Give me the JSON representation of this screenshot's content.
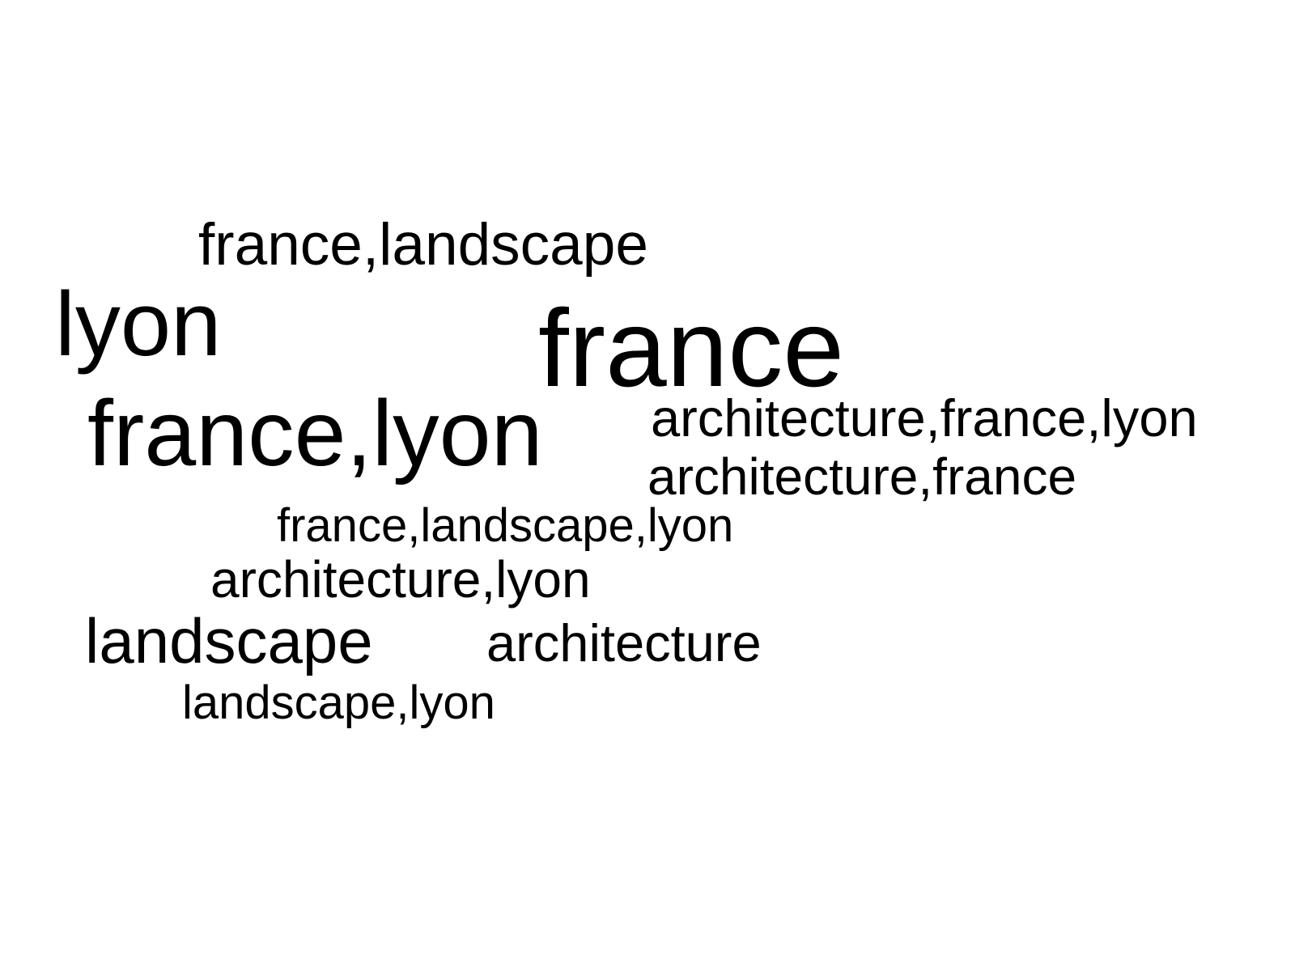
{
  "word_cloud": {
    "text_color": "#000000",
    "background_color": "#ffffff",
    "words": [
      {
        "id": "france-landscape",
        "text": "france,landscape"
      },
      {
        "id": "lyon",
        "text": "lyon"
      },
      {
        "id": "france",
        "text": "france"
      },
      {
        "id": "france-lyon",
        "text": "france,lyon"
      },
      {
        "id": "architecture-france-lyon",
        "text": "architecture,france,lyon"
      },
      {
        "id": "architecture-france",
        "text": "architecture,france"
      },
      {
        "id": "france-landscape-lyon",
        "text": "france,landscape,lyon"
      },
      {
        "id": "architecture-lyon",
        "text": "architecture,lyon"
      },
      {
        "id": "landscape",
        "text": "landscape"
      },
      {
        "id": "architecture",
        "text": "architecture"
      },
      {
        "id": "landscape-lyon",
        "text": "landscape,lyon"
      }
    ]
  }
}
